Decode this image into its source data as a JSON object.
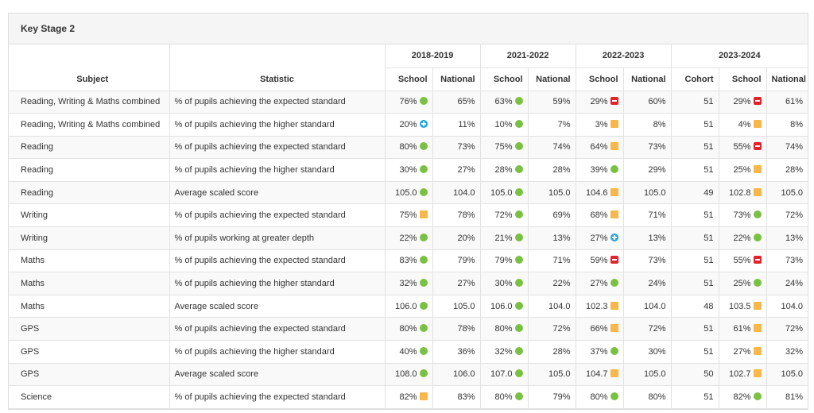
{
  "panel": {
    "title": "Key Stage 2"
  },
  "header": {
    "subject": "Subject",
    "statistic": "Statistic",
    "years": [
      "2018-2019",
      "2021-2022",
      "2022-2023",
      "2023-2024"
    ],
    "school": "School",
    "national": "National",
    "cohort": "Cohort"
  },
  "colors": {
    "green": "#7ac143",
    "amber": "#f8b74a",
    "red": "#e2232b",
    "blue": "#1aa6dd"
  },
  "indicator_icons": {
    "green": "green-circle-icon",
    "amber": "amber-square-icon",
    "red": "red-minus-icon",
    "blue": "blue-plus-icon"
  },
  "rows": [
    {
      "subject": "Reading, Writing & Maths combined",
      "statistic": "% of pupils achieving the expected standard",
      "y2019": {
        "school": "76%",
        "ind": "green",
        "national": "65%"
      },
      "y2022": {
        "school": "63%",
        "ind": "green",
        "national": "59%"
      },
      "y2023": {
        "school": "29%",
        "ind": "red",
        "national": "60%"
      },
      "y2024": {
        "cohort": "51",
        "school": "29%",
        "ind": "red",
        "national": "61%"
      }
    },
    {
      "subject": "Reading, Writing & Maths combined",
      "statistic": "% of pupils achieving the higher standard",
      "y2019": {
        "school": "20%",
        "ind": "blue",
        "national": "11%"
      },
      "y2022": {
        "school": "10%",
        "ind": "green",
        "national": "7%"
      },
      "y2023": {
        "school": "3%",
        "ind": "amber",
        "national": "8%"
      },
      "y2024": {
        "cohort": "51",
        "school": "4%",
        "ind": "amber",
        "national": "8%"
      }
    },
    {
      "subject": "Reading",
      "statistic": "% of pupils achieving the expected standard",
      "y2019": {
        "school": "80%",
        "ind": "green",
        "national": "73%"
      },
      "y2022": {
        "school": "75%",
        "ind": "green",
        "national": "74%"
      },
      "y2023": {
        "school": "64%",
        "ind": "amber",
        "national": "73%"
      },
      "y2024": {
        "cohort": "51",
        "school": "55%",
        "ind": "red",
        "national": "74%"
      }
    },
    {
      "subject": "Reading",
      "statistic": "% of pupils achieving the higher standard",
      "y2019": {
        "school": "30%",
        "ind": "green",
        "national": "27%"
      },
      "y2022": {
        "school": "28%",
        "ind": "green",
        "national": "28%"
      },
      "y2023": {
        "school": "39%",
        "ind": "green",
        "national": "29%"
      },
      "y2024": {
        "cohort": "51",
        "school": "25%",
        "ind": "amber",
        "national": "28%"
      }
    },
    {
      "subject": "Reading",
      "statistic": "Average scaled score",
      "y2019": {
        "school": "105.0",
        "ind": "green",
        "national": "104.0"
      },
      "y2022": {
        "school": "105.0",
        "ind": "green",
        "national": "105.0"
      },
      "y2023": {
        "school": "104.6",
        "ind": "amber",
        "national": "105.0"
      },
      "y2024": {
        "cohort": "49",
        "school": "102.8",
        "ind": "amber",
        "national": "105.0"
      }
    },
    {
      "subject": "Writing",
      "statistic": "% of pupils achieving the expected standard",
      "y2019": {
        "school": "75%",
        "ind": "amber",
        "national": "78%"
      },
      "y2022": {
        "school": "72%",
        "ind": "green",
        "national": "69%"
      },
      "y2023": {
        "school": "68%",
        "ind": "amber",
        "national": "71%"
      },
      "y2024": {
        "cohort": "51",
        "school": "73%",
        "ind": "green",
        "national": "72%"
      }
    },
    {
      "subject": "Writing",
      "statistic": "% of pupils working at greater depth",
      "y2019": {
        "school": "22%",
        "ind": "green",
        "national": "20%"
      },
      "y2022": {
        "school": "21%",
        "ind": "green",
        "national": "13%"
      },
      "y2023": {
        "school": "27%",
        "ind": "blue",
        "national": "13%"
      },
      "y2024": {
        "cohort": "51",
        "school": "22%",
        "ind": "green",
        "national": "13%"
      }
    },
    {
      "subject": "Maths",
      "statistic": "% of pupils achieving the expected standard",
      "y2019": {
        "school": "83%",
        "ind": "green",
        "national": "79%"
      },
      "y2022": {
        "school": "79%",
        "ind": "green",
        "national": "71%"
      },
      "y2023": {
        "school": "59%",
        "ind": "red",
        "national": "73%"
      },
      "y2024": {
        "cohort": "51",
        "school": "55%",
        "ind": "red",
        "national": "73%"
      }
    },
    {
      "subject": "Maths",
      "statistic": "% of pupils achieving the higher standard",
      "y2019": {
        "school": "32%",
        "ind": "green",
        "national": "27%"
      },
      "y2022": {
        "school": "30%",
        "ind": "green",
        "national": "22%"
      },
      "y2023": {
        "school": "27%",
        "ind": "green",
        "national": "24%"
      },
      "y2024": {
        "cohort": "51",
        "school": "25%",
        "ind": "green",
        "national": "24%"
      }
    },
    {
      "subject": "Maths",
      "statistic": "Average scaled score",
      "y2019": {
        "school": "106.0",
        "ind": "green",
        "national": "105.0"
      },
      "y2022": {
        "school": "106.0",
        "ind": "green",
        "national": "104.0"
      },
      "y2023": {
        "school": "102.3",
        "ind": "amber",
        "national": "104.0"
      },
      "y2024": {
        "cohort": "48",
        "school": "103.5",
        "ind": "amber",
        "national": "104.0"
      }
    },
    {
      "subject": "GPS",
      "statistic": "% of pupils achieving the expected standard",
      "y2019": {
        "school": "80%",
        "ind": "green",
        "national": "78%"
      },
      "y2022": {
        "school": "80%",
        "ind": "green",
        "national": "72%"
      },
      "y2023": {
        "school": "66%",
        "ind": "amber",
        "national": "72%"
      },
      "y2024": {
        "cohort": "51",
        "school": "61%",
        "ind": "amber",
        "national": "72%"
      }
    },
    {
      "subject": "GPS",
      "statistic": "% of pupils achieving the higher standard",
      "y2019": {
        "school": "40%",
        "ind": "green",
        "national": "36%"
      },
      "y2022": {
        "school": "32%",
        "ind": "green",
        "national": "28%"
      },
      "y2023": {
        "school": "37%",
        "ind": "green",
        "national": "30%"
      },
      "y2024": {
        "cohort": "51",
        "school": "27%",
        "ind": "amber",
        "national": "32%"
      }
    },
    {
      "subject": "GPS",
      "statistic": "Average scaled score",
      "y2019": {
        "school": "108.0",
        "ind": "green",
        "national": "106.0"
      },
      "y2022": {
        "school": "107.0",
        "ind": "green",
        "national": "105.0"
      },
      "y2023": {
        "school": "104.7",
        "ind": "amber",
        "national": "105.0"
      },
      "y2024": {
        "cohort": "50",
        "school": "102.7",
        "ind": "amber",
        "national": "105.0"
      }
    },
    {
      "subject": "Science",
      "statistic": "% of pupils achieving the expected standard",
      "y2019": {
        "school": "82%",
        "ind": "amber",
        "national": "83%"
      },
      "y2022": {
        "school": "80%",
        "ind": "green",
        "national": "79%"
      },
      "y2023": {
        "school": "80%",
        "ind": "green",
        "national": "80%"
      },
      "y2024": {
        "cohort": "51",
        "school": "82%",
        "ind": "green",
        "national": "81%"
      }
    }
  ]
}
